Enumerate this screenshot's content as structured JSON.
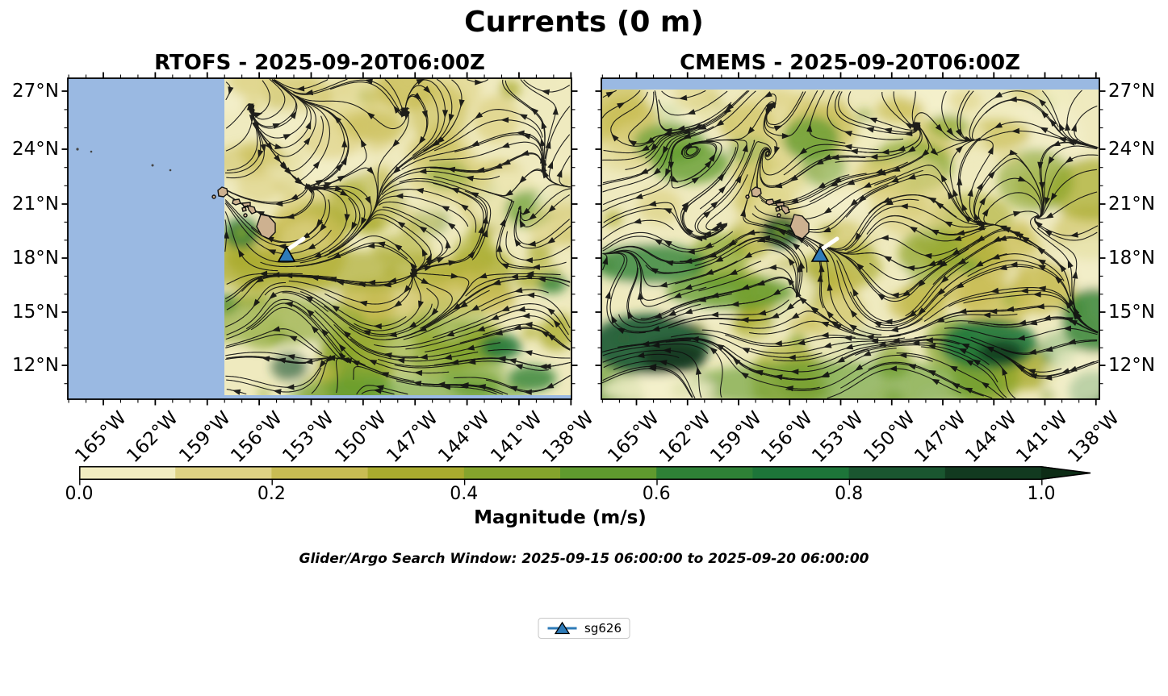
{
  "figure": {
    "title": "Currents (0 m)"
  },
  "panels": [
    {
      "id": "rtofs",
      "title": "RTOFS - 2025-09-20T06:00Z"
    },
    {
      "id": "cmems",
      "title": "CMEMS - 2025-09-20T06:00Z"
    }
  ],
  "axes": {
    "lat_ticks": [
      "27°N",
      "24°N",
      "21°N",
      "18°N",
      "15°N",
      "12°N"
    ],
    "lon_ticks": [
      "165°W",
      "162°W",
      "159°W",
      "156°W",
      "153°W",
      "150°W",
      "147°W",
      "144°W",
      "141°W",
      "138°W"
    ]
  },
  "colorbar": {
    "label": "Magnitude (m/s)",
    "ticks": [
      "0.0",
      "0.2",
      "0.4",
      "0.6",
      "0.8",
      "1.0"
    ],
    "segment_colors": [
      "#f1edc1",
      "#ddd284",
      "#c8bc53",
      "#a9ab2e",
      "#85a42c",
      "#5f9a2e",
      "#2e8136",
      "#1d7539",
      "#1a5630",
      "#123a20"
    ],
    "arrow_color": "#0d2c16"
  },
  "annotations": {
    "search_window": "Glider/Argo Search Window: 2025-09-15 06:00:00 to 2025-09-20 06:00:00"
  },
  "legend": {
    "items": [
      {
        "label": "sg626",
        "marker": "triangle-up",
        "color": "#2e7bb8"
      }
    ]
  },
  "map_colors": {
    "no_data": "#9ab9e2",
    "ocean_base": "#efeabf",
    "land": "#cdb190",
    "streamline": "#111111",
    "glider_track": "#ffffff"
  },
  "chart_data": {
    "type": "map-streamplot",
    "title": "Currents (0 m)",
    "panels": [
      {
        "name": "RTOFS",
        "timestamp": "2025-09-20T06:00Z",
        "no_data_region": "blank blue fill west of ~158°W and a thin strip along the bottom edge"
      },
      {
        "name": "CMEMS",
        "timestamp": "2025-09-20T06:00Z",
        "no_data_region": "blank blue strip north of ~27.2°N"
      }
    ],
    "x_axis": {
      "tick_labels_deg_west": [
        165,
        162,
        159,
        156,
        153,
        150,
        147,
        144,
        141,
        138
      ],
      "approx_range_deg_west": [
        167,
        138
      ],
      "minor_tick_interval_deg": 1
    },
    "y_axis": {
      "tick_labels_deg_north": [
        27,
        24,
        21,
        18,
        15,
        12
      ],
      "approx_range_deg_north": [
        10.2,
        27.7
      ],
      "minor_tick_interval_deg": 1,
      "projection": "Mercator"
    },
    "colorbar": {
      "label": "Magnitude (m/s)",
      "tick_values": [
        0.0,
        0.2,
        0.4,
        0.6,
        0.8,
        1.0
      ],
      "bins": 10,
      "bin_width": 0.1,
      "range": [
        0.0,
        1.0
      ],
      "extend": "max"
    },
    "field": "surface current magnitude (filled) with streamlines and arrowheads showing direction; strongest (dark green) zonal westward flow bands south of ~16°N and eddies near the Hawaiian Islands",
    "land_features": "Hawaiian Islands (Kauai, Niihau, Oahu, Molokai, Lanai, Maui, Kahoolawe, Hawaii)",
    "markers": [
      {
        "id": "sg626",
        "symbol": "triangle-up",
        "approx_lat_deg_north": 18.0,
        "approx_lon_deg_west": 154.4,
        "shown_in": "both panels",
        "track": "short white segment extending northeast of marker"
      }
    ]
  }
}
